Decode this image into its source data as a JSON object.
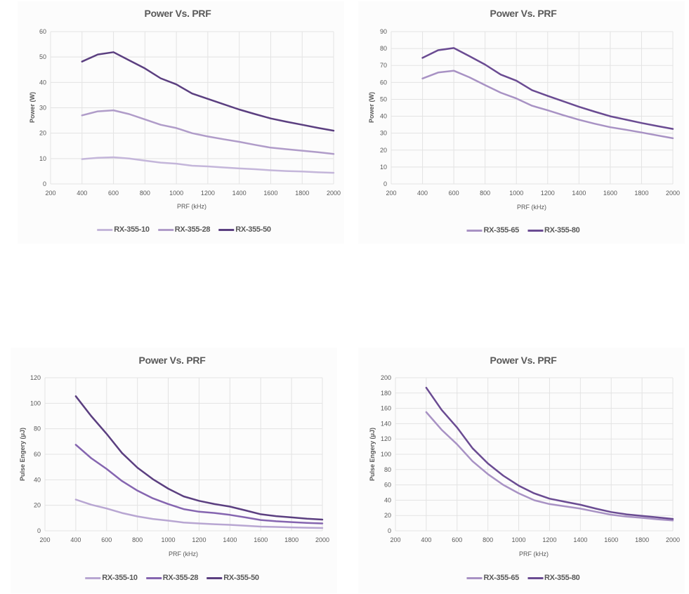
{
  "colors": {
    "light": "#c4b6da",
    "mid": "#b09cc9",
    "mid2": "#8565b0",
    "dark": "#5b3f80"
  },
  "chart_data": [
    {
      "type": "line",
      "title": "Power Vs. PRF",
      "xlabel": "PRF (kHz)",
      "ylabel": "Power (W)",
      "xlim": [
        200,
        2000
      ],
      "xstep": 200,
      "ylim": [
        0,
        60
      ],
      "ystep": 10,
      "grid": true,
      "legend": "bottom",
      "x": [
        400,
        500,
        600,
        700,
        800,
        900,
        1000,
        1100,
        1200,
        1300,
        1400,
        1500,
        1600,
        1700,
        1800,
        1900,
        2000
      ],
      "series": [
        {
          "name": "RX-355-10",
          "color": "#c4b6da",
          "values": [
            9.8,
            10.3,
            10.5,
            10.0,
            9.2,
            8.4,
            8.0,
            7.2,
            6.9,
            6.5,
            6.1,
            5.8,
            5.4,
            5.1,
            4.9,
            4.6,
            4.4
          ]
        },
        {
          "name": "RX-355-28",
          "color": "#b09cc9",
          "values": [
            27,
            28.6,
            29,
            27.5,
            25.4,
            23.3,
            22,
            20,
            18.7,
            17.6,
            16.6,
            15.4,
            14.3,
            13.7,
            13.1,
            12.5,
            11.8
          ]
        },
        {
          "name": "RX-355-50",
          "color": "#5b3f80",
          "values": [
            48.2,
            51,
            51.9,
            48.7,
            45.5,
            41.6,
            39.2,
            35.6,
            33.5,
            31.4,
            29.3,
            27.5,
            25.8,
            24.5,
            23.3,
            22.1,
            21
          ]
        }
      ]
    },
    {
      "type": "line",
      "title": "Power Vs. PRF",
      "xlabel": "PRF (kHz)",
      "ylabel": "Power (W)",
      "xlim": [
        200,
        2000
      ],
      "xstep": 200,
      "ylim": [
        0,
        90
      ],
      "ystep": 10,
      "grid": true,
      "legend": "bottom",
      "x": [
        400,
        500,
        600,
        700,
        800,
        900,
        1000,
        1100,
        1200,
        1300,
        1400,
        1500,
        1600,
        1700,
        1800,
        1900,
        2000
      ],
      "series": [
        {
          "name": "RX-355-65",
          "color": "#a892c4",
          "values": [
            62.3,
            65.8,
            66.9,
            63,
            58.4,
            53.9,
            50.5,
            46.2,
            43.5,
            40.6,
            37.9,
            35.6,
            33.5,
            32,
            30.4,
            28.7,
            27
          ]
        },
        {
          "name": "RX-355-80",
          "color": "#6a4b92",
          "values": [
            74.5,
            79,
            80.3,
            75.5,
            70.5,
            64.6,
            61,
            55.4,
            52,
            48.8,
            45.6,
            42.7,
            40,
            38,
            36,
            34.2,
            32.5
          ]
        }
      ]
    },
    {
      "type": "line",
      "title": "Power Vs. PRF",
      "xlabel": "PRF (kHz)",
      "ylabel": "Pulse Engery (μJ)",
      "xlim": [
        200,
        2000
      ],
      "xstep": 200,
      "ylim": [
        0,
        120
      ],
      "ystep": 20,
      "grid": true,
      "legend": "bottom",
      "x": [
        400,
        500,
        600,
        700,
        800,
        900,
        1000,
        1100,
        1200,
        1300,
        1400,
        1500,
        1600,
        1700,
        1800,
        1900,
        2000
      ],
      "series": [
        {
          "name": "RX-355-10",
          "color": "#b8a6d2",
          "values": [
            24.5,
            20.5,
            17.5,
            14,
            11.3,
            9.3,
            8,
            6.5,
            5.8,
            5.2,
            4.7,
            4,
            3.3,
            3,
            2.7,
            2.4,
            2.2
          ]
        },
        {
          "name": "RX-355-28",
          "color": "#8565b0",
          "values": [
            67.5,
            57,
            48.5,
            39,
            31.5,
            25.5,
            21,
            17,
            15,
            14,
            12.5,
            10.5,
            8.5,
            7.5,
            6.8,
            6.2,
            5.8
          ]
        },
        {
          "name": "RX-355-50",
          "color": "#5b3f80",
          "values": [
            105.5,
            90,
            76,
            61,
            49.5,
            40.5,
            33,
            27,
            23.5,
            21,
            19,
            16,
            13,
            11.5,
            10.5,
            9.5,
            8.8
          ]
        }
      ]
    },
    {
      "type": "line",
      "title": "Power Vs. PRF",
      "xlabel": "PRF (kHz)",
      "ylabel": "Pulse Engery (μJ)",
      "xlim": [
        200,
        2000
      ],
      "xstep": 200,
      "ylim": [
        0,
        200
      ],
      "ystep": 20,
      "grid": true,
      "legend": "bottom",
      "x": [
        400,
        500,
        600,
        700,
        800,
        900,
        1000,
        1100,
        1200,
        1300,
        1400,
        1500,
        1600,
        1700,
        1800,
        1900,
        2000
      ],
      "series": [
        {
          "name": "RX-355-65",
          "color": "#a892c4",
          "values": [
            155,
            132,
            113,
            91,
            74,
            60,
            49,
            40,
            35,
            32,
            29,
            25,
            21,
            18.5,
            17,
            15,
            13.5
          ]
        },
        {
          "name": "RX-355-80",
          "color": "#6a4b92",
          "values": [
            187,
            158,
            135,
            108,
            88,
            72,
            59,
            49,
            42,
            38,
            34,
            29,
            24.5,
            21.5,
            19.5,
            17.5,
            15.5
          ]
        }
      ]
    }
  ]
}
